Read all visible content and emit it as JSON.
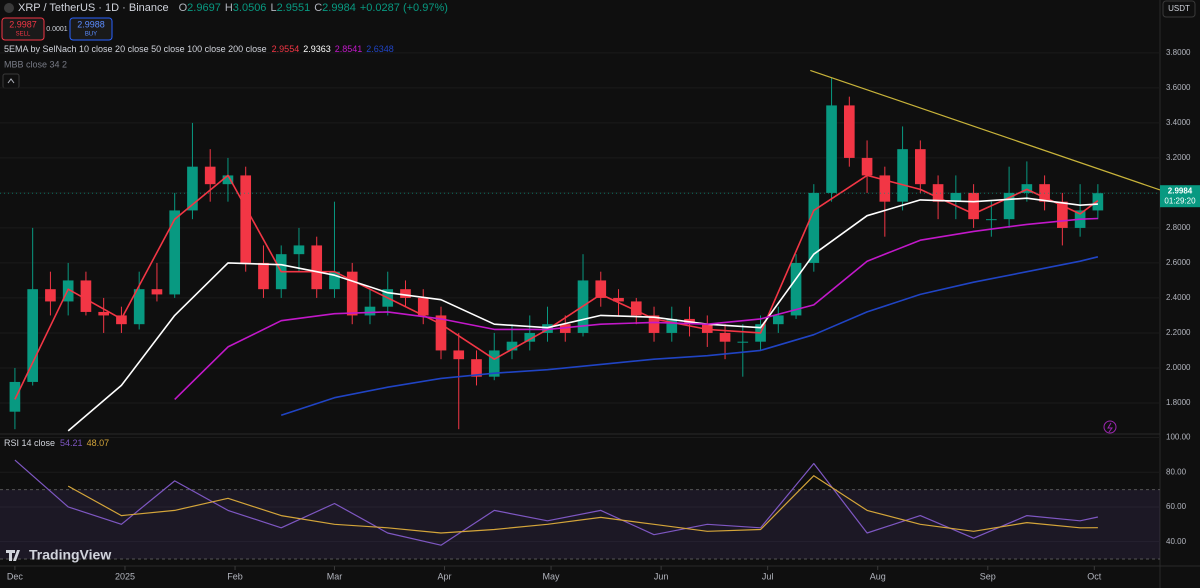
{
  "header": {
    "symbol": "XRP / TetherUS · 1D · Binance",
    "o_label": "O",
    "open": 2.9697,
    "h_label": "H",
    "high": 3.0506,
    "l_label": "L",
    "low": 2.9551,
    "c_label": "C",
    "change": "+0.0287 (+0.97%)",
    "sell_price": 2.9987,
    "sell": "SELL",
    "spread": 0.0001,
    "buy_price": 2.9988,
    "buy": "BUY",
    "indicator_title": "5EMA by SelNach 10 close 20 close 50 close 100 close 200 close",
    "mbb": "MBB close 34 2",
    "currency": "USDT",
    "logo": "TradingView"
  },
  "chart_data": [
    {
      "type": "candlestick",
      "x": [
        0,
        5,
        10,
        15,
        20,
        25,
        30,
        35,
        40,
        45,
        50,
        55,
        60,
        65,
        70,
        75,
        80,
        85,
        90,
        95,
        100,
        105,
        110,
        115,
        120,
        125,
        130,
        135,
        140,
        145,
        150,
        155,
        160,
        165,
        170,
        175,
        180,
        185,
        190,
        195,
        200,
        205,
        210,
        215,
        220,
        225,
        230,
        235,
        240,
        245,
        250,
        255,
        260,
        265,
        270,
        275,
        280,
        285,
        290,
        295,
        300,
        305
      ],
      "open": [
        1.75,
        1.92,
        2.45,
        2.38,
        2.5,
        2.32,
        2.3,
        2.25,
        2.45,
        2.42,
        2.9,
        3.15,
        3.05,
        3.1,
        2.6,
        2.45,
        2.65,
        2.7,
        2.45,
        2.55,
        2.3,
        2.35,
        2.45,
        2.4,
        2.3,
        2.1,
        2.05,
        1.95,
        2.1,
        2.15,
        2.2,
        2.25,
        2.2,
        2.5,
        2.4,
        2.38,
        2.3,
        2.2,
        2.28,
        2.25,
        2.2,
        2.15,
        2.15,
        2.25,
        2.3,
        2.6,
        3.0,
        3.5,
        3.2,
        3.1,
        2.95,
        3.25,
        3.05,
        2.95,
        3.0,
        2.85,
        2.85,
        3.0,
        3.05,
        2.95,
        2.8,
        2.9
      ],
      "high": [
        2.0,
        2.8,
        2.55,
        2.6,
        2.55,
        2.4,
        2.35,
        2.55,
        2.6,
        3.0,
        3.4,
        3.25,
        3.2,
        3.15,
        2.7,
        2.7,
        2.8,
        2.75,
        2.95,
        2.6,
        2.45,
        2.55,
        2.5,
        2.45,
        2.35,
        2.2,
        2.1,
        2.2,
        2.25,
        2.3,
        2.35,
        2.3,
        2.65,
        2.55,
        2.45,
        2.4,
        2.35,
        2.35,
        2.35,
        2.3,
        2.25,
        2.25,
        2.3,
        2.35,
        2.65,
        3.05,
        3.66,
        3.55,
        3.3,
        3.15,
        3.38,
        3.3,
        3.1,
        3.1,
        3.05,
        2.95,
        3.15,
        3.18,
        3.1,
        3.0,
        3.05,
        3.05
      ],
      "low": [
        1.65,
        1.9,
        2.3,
        2.3,
        2.3,
        2.2,
        2.2,
        2.22,
        2.38,
        2.4,
        2.85,
        2.95,
        2.95,
        2.55,
        2.4,
        2.4,
        2.55,
        2.4,
        2.4,
        2.25,
        2.25,
        2.3,
        2.35,
        2.25,
        2.05,
        1.65,
        1.9,
        1.93,
        2.05,
        2.1,
        2.15,
        2.15,
        2.18,
        2.35,
        2.3,
        2.25,
        2.15,
        2.15,
        2.18,
        2.12,
        2.05,
        1.95,
        2.1,
        2.2,
        2.28,
        2.55,
        2.95,
        3.15,
        3.0,
        2.75,
        2.9,
        3.0,
        2.85,
        2.85,
        2.8,
        2.75,
        2.8,
        2.95,
        2.9,
        2.7,
        2.75,
        2.85
      ],
      "close": [
        1.92,
        2.45,
        2.38,
        2.5,
        2.32,
        2.3,
        2.25,
        2.45,
        2.42,
        2.9,
        3.15,
        3.05,
        3.1,
        2.6,
        2.45,
        2.65,
        2.7,
        2.45,
        2.55,
        2.3,
        2.35,
        2.45,
        2.4,
        2.3,
        2.1,
        2.05,
        1.95,
        2.1,
        2.15,
        2.2,
        2.25,
        2.2,
        2.5,
        2.4,
        2.38,
        2.3,
        2.2,
        2.28,
        2.25,
        2.2,
        2.15,
        2.15,
        2.25,
        2.3,
        2.6,
        3.0,
        3.5,
        3.2,
        3.1,
        2.95,
        3.25,
        3.05,
        2.95,
        3.0,
        2.85,
        2.85,
        3.0,
        3.05,
        2.95,
        2.8,
        2.9,
        2.9984
      ],
      "up_color": "#089981",
      "down_color": "#f23645",
      "countdown": "01:29:20",
      "xlim": [
        -4.2,
        322.5
      ],
      "xticks": [
        {
          "value": 0,
          "label": "Dec"
        },
        {
          "value": 31,
          "label": "2025"
        },
        {
          "value": 62,
          "label": "Feb"
        },
        {
          "value": 90,
          "label": "Mar"
        },
        {
          "value": 121,
          "label": "Apr"
        },
        {
          "value": 151,
          "label": "May"
        },
        {
          "value": 182,
          "label": "Jun"
        },
        {
          "value": 212,
          "label": "Jul"
        },
        {
          "value": 243,
          "label": "Aug"
        },
        {
          "value": 274,
          "label": "Sep"
        },
        {
          "value": 304,
          "label": "Oct"
        }
      ],
      "ylim": [
        1.634,
        3.988
      ],
      "yticks": [
        {
          "value": 1.8,
          "label": "1.8000"
        },
        {
          "value": 2.0,
          "label": "2.0000"
        },
        {
          "value": 2.2,
          "label": "2.2000"
        },
        {
          "value": 2.4,
          "label": "2.4000"
        },
        {
          "value": 2.6,
          "label": "2.6000"
        },
        {
          "value": 2.8,
          "label": "2.8000"
        },
        {
          "value": 3.0,
          "label": "3.0000"
        },
        {
          "value": 3.2,
          "label": "3.2000"
        },
        {
          "value": 3.4,
          "label": "3.4000"
        },
        {
          "value": 3.6,
          "label": "3.6000"
        },
        {
          "value": 3.8,
          "label": "3.8000"
        }
      ],
      "overlays": {
        "x": [
          0,
          15,
          30,
          45,
          60,
          75,
          90,
          105,
          120,
          135,
          150,
          165,
          180,
          195,
          210,
          225,
          240,
          255,
          270,
          285,
          300,
          305
        ],
        "series": [
          {
            "color": "#f23645",
            "values": [
              1.82,
              2.45,
              2.28,
              2.85,
              3.1,
              2.55,
              2.55,
              2.4,
              2.25,
              2.05,
              2.22,
              2.42,
              2.28,
              2.22,
              2.2,
              2.9,
              3.1,
              3.02,
              2.88,
              3.02,
              2.88,
              2.9554
            ]
          },
          {
            "color": "#ffffff",
            "values": [
              null,
              1.64,
              1.9,
              2.3,
              2.6,
              2.59,
              2.53,
              2.43,
              2.39,
              2.25,
              2.23,
              2.3,
              2.29,
              2.25,
              2.23,
              2.65,
              2.87,
              2.96,
              2.95,
              2.97,
              2.93,
              2.9363
            ]
          },
          {
            "color": "#c218c9",
            "values": [
              null,
              null,
              null,
              1.82,
              2.12,
              2.27,
              2.31,
              2.32,
              2.28,
              2.22,
              2.22,
              2.25,
              2.26,
              2.25,
              2.28,
              2.36,
              2.61,
              2.73,
              2.78,
              2.82,
              2.85,
              2.8541
            ]
          },
          {
            "color": "#2044c4",
            "values": [
              null,
              null,
              null,
              null,
              null,
              1.73,
              1.83,
              1.89,
              1.94,
              1.97,
              1.99,
              2.02,
              2.05,
              2.07,
              2.1,
              2.19,
              2.32,
              2.42,
              2.49,
              2.55,
              2.61,
              2.6348
            ]
          }
        ]
      },
      "trendline": {
        "x": [
          224,
          322.5
        ],
        "values": [
          3.7,
          3.017
        ],
        "color": "#c8b33a"
      }
    },
    {
      "type": "line",
      "title": "RSI 14 close",
      "x": [
        0,
        15,
        30,
        45,
        60,
        75,
        90,
        105,
        120,
        135,
        150,
        165,
        180,
        195,
        210,
        225,
        240,
        255,
        270,
        285,
        300,
        305
      ],
      "series": [
        {
          "color": "#7e57c2",
          "values": [
            87,
            60,
            50,
            75,
            58,
            48,
            62,
            45,
            38,
            58,
            52,
            58,
            44,
            50,
            48,
            85,
            45,
            55,
            42,
            55,
            52,
            54.21
          ]
        },
        {
          "color": "#d4a53a",
          "values": [
            null,
            72,
            55,
            58,
            65,
            55,
            50,
            48,
            45,
            47,
            50,
            54,
            50,
            46,
            47,
            78,
            58,
            50,
            46,
            51,
            48,
            48.07
          ]
        }
      ],
      "ylim": [
        26,
        102
      ],
      "yticks": [
        {
          "value": 40,
          "label": "40.00"
        },
        {
          "value": 60,
          "label": "60.00"
        },
        {
          "value": 80,
          "label": "80.00"
        },
        {
          "value": 100,
          "label": "100.00"
        }
      ],
      "band": [
        30,
        70
      ]
    }
  ]
}
